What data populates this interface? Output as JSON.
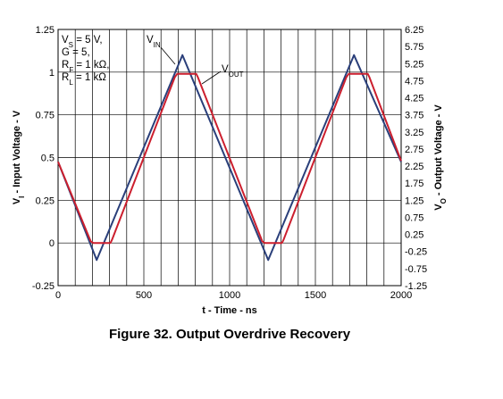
{
  "chart_data": {
    "type": "line",
    "caption": "Figure 32. Output Overdrive Recovery",
    "xlabel": "t - Time - ns",
    "ylabel_left": {
      "main": "V",
      "sub": "I",
      "rest": " - Input Voltage - V"
    },
    "ylabel_right": {
      "main": "V",
      "sub": "O",
      "rest": " - Output Voltage - V"
    },
    "x_ticks": [
      "0",
      "500",
      "1000",
      "1500",
      "2000"
    ],
    "y_left_ticks": [
      "-0.25",
      "0",
      "0.25",
      "0.5",
      "0.75",
      "1",
      "1.25"
    ],
    "y_right_ticks": [
      "-1.25",
      "-0.75",
      "-0.25",
      "0.25",
      "0.75",
      "1.25",
      "1.75",
      "2.25",
      "2.75",
      "3.25",
      "3.75",
      "4.25",
      "4.75",
      "5.25",
      "5.75",
      "6.25"
    ],
    "xlim": [
      0,
      2000
    ],
    "ylim_left": [
      -0.25,
      1.25
    ],
    "ylim_right": [
      -1.25,
      6.25
    ],
    "grid": true,
    "conditions": [
      {
        "main": "V",
        "sub": "S",
        "rest": " = 5 V,"
      },
      {
        "main": "G = 5,",
        "sub": "",
        "rest": ""
      },
      {
        "main": "R",
        "sub": "F",
        "rest": " = 1 kΩ,"
      },
      {
        "main": "R",
        "sub": "L",
        "rest": " = 1 kΩ"
      }
    ],
    "series": [
      {
        "name": "VIN",
        "label_main": "V",
        "label_sub": "IN",
        "axis": "left",
        "color": "#2a3f7a",
        "x": [
          0,
          225,
          725,
          1225,
          1725,
          2000
        ],
        "y": [
          0.475,
          -0.1,
          1.1,
          -0.1,
          1.1,
          0.475
        ]
      },
      {
        "name": "VOUT",
        "label_main": "V",
        "label_sub": "OUT",
        "axis": "right",
        "color": "#cc1f2e",
        "x": [
          0,
          190,
          205,
          305,
          315,
          680,
          695,
          805,
          815,
          1190,
          1205,
          1305,
          1315,
          1680,
          1695,
          1805,
          1815,
          2000
        ],
        "y": [
          2.375,
          0.05,
          0.0,
          0.0,
          0.1,
          4.85,
          4.95,
          4.95,
          4.85,
          0.05,
          0.0,
          0.0,
          0.1,
          4.85,
          4.95,
          4.95,
          4.85,
          2.4
        ]
      }
    ]
  }
}
